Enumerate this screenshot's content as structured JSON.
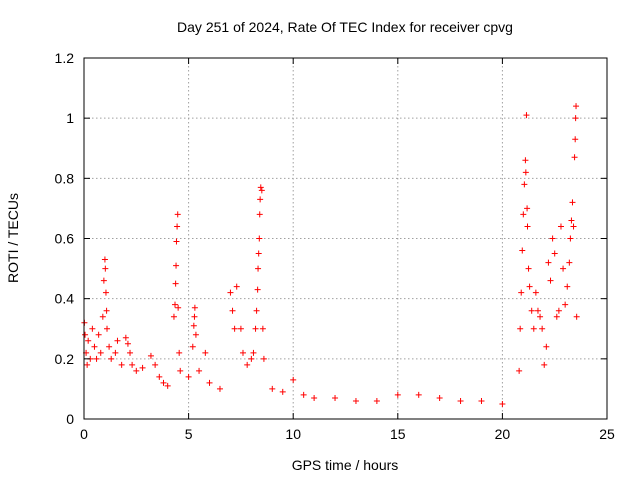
{
  "chart_data": {
    "type": "scatter",
    "title": "Day 251 of 2024, Rate Of TEC Index for receiver cpvg",
    "xlabel": "GPS time / hours",
    "ylabel": "ROTI / TECUs",
    "xlim": [
      0,
      25
    ],
    "ylim": [
      0,
      1.2
    ],
    "x_ticks": [
      0,
      5,
      10,
      15,
      20,
      25
    ],
    "x_tick_labels": [
      "0",
      "5",
      "10",
      "15",
      "20",
      "25"
    ],
    "y_ticks": [
      0,
      0.2,
      0.4,
      0.6,
      0.8,
      1,
      1.2
    ],
    "y_tick_labels": [
      "0",
      "0.2",
      "0.4",
      "0.6",
      "0.8",
      "1",
      "1.2"
    ],
    "grid": true,
    "marker": "+",
    "color": "#ff0000",
    "series": [
      {
        "name": "ROTI",
        "points": [
          [
            0.02,
            0.32
          ],
          [
            0.05,
            0.28
          ],
          [
            0.1,
            0.22
          ],
          [
            0.15,
            0.18
          ],
          [
            0.2,
            0.26
          ],
          [
            0.3,
            0.2
          ],
          [
            0.4,
            0.3
          ],
          [
            0.5,
            0.24
          ],
          [
            0.6,
            0.2
          ],
          [
            0.7,
            0.28
          ],
          [
            0.8,
            0.22
          ],
          [
            0.9,
            0.34
          ],
          [
            0.95,
            0.46
          ],
          [
            1.0,
            0.53
          ],
          [
            1.02,
            0.5
          ],
          [
            1.05,
            0.42
          ],
          [
            1.08,
            0.36
          ],
          [
            1.1,
            0.3
          ],
          [
            1.2,
            0.24
          ],
          [
            1.3,
            0.2
          ],
          [
            1.5,
            0.22
          ],
          [
            1.6,
            0.26
          ],
          [
            1.8,
            0.18
          ],
          [
            2.0,
            0.27
          ],
          [
            2.1,
            0.25
          ],
          [
            2.2,
            0.22
          ],
          [
            2.3,
            0.18
          ],
          [
            2.5,
            0.16
          ],
          [
            2.8,
            0.17
          ],
          [
            3.2,
            0.21
          ],
          [
            3.4,
            0.18
          ],
          [
            3.6,
            0.14
          ],
          [
            3.8,
            0.12
          ],
          [
            4.0,
            0.11
          ],
          [
            4.3,
            0.34
          ],
          [
            4.35,
            0.38
          ],
          [
            4.38,
            0.45
          ],
          [
            4.4,
            0.51
          ],
          [
            4.42,
            0.59
          ],
          [
            4.45,
            0.64
          ],
          [
            4.48,
            0.68
          ],
          [
            4.5,
            0.37
          ],
          [
            4.55,
            0.22
          ],
          [
            4.6,
            0.16
          ],
          [
            5.0,
            0.14
          ],
          [
            5.2,
            0.24
          ],
          [
            5.25,
            0.31
          ],
          [
            5.28,
            0.34
          ],
          [
            5.3,
            0.37
          ],
          [
            5.35,
            0.28
          ],
          [
            5.5,
            0.16
          ],
          [
            5.8,
            0.22
          ],
          [
            6.0,
            0.12
          ],
          [
            6.5,
            0.1
          ],
          [
            7.0,
            0.42
          ],
          [
            7.1,
            0.36
          ],
          [
            7.2,
            0.3
          ],
          [
            7.3,
            0.44
          ],
          [
            7.5,
            0.3
          ],
          [
            7.6,
            0.22
          ],
          [
            7.8,
            0.18
          ],
          [
            8.0,
            0.2
          ],
          [
            8.1,
            0.22
          ],
          [
            8.2,
            0.3
          ],
          [
            8.25,
            0.36
          ],
          [
            8.3,
            0.43
          ],
          [
            8.32,
            0.5
          ],
          [
            8.35,
            0.55
          ],
          [
            8.38,
            0.6
          ],
          [
            8.4,
            0.68
          ],
          [
            8.42,
            0.73
          ],
          [
            8.45,
            0.77
          ],
          [
            8.5,
            0.76
          ],
          [
            8.55,
            0.3
          ],
          [
            8.6,
            0.2
          ],
          [
            9.0,
            0.1
          ],
          [
            9.5,
            0.09
          ],
          [
            10.0,
            0.13
          ],
          [
            10.5,
            0.08
          ],
          [
            11.0,
            0.07
          ],
          [
            12.0,
            0.07
          ],
          [
            13.0,
            0.06
          ],
          [
            14.0,
            0.06
          ],
          [
            15.0,
            0.08
          ],
          [
            16.0,
            0.08
          ],
          [
            17.0,
            0.07
          ],
          [
            18.0,
            0.06
          ],
          [
            19.0,
            0.06
          ],
          [
            20.0,
            0.05
          ],
          [
            20.8,
            0.16
          ],
          [
            20.85,
            0.3
          ],
          [
            20.9,
            0.42
          ],
          [
            20.95,
            0.56
          ],
          [
            21.0,
            0.68
          ],
          [
            21.05,
            0.78
          ],
          [
            21.1,
            0.86
          ],
          [
            21.12,
            0.82
          ],
          [
            21.15,
            1.01
          ],
          [
            21.18,
            0.7
          ],
          [
            21.2,
            0.64
          ],
          [
            21.25,
            0.5
          ],
          [
            21.3,
            0.44
          ],
          [
            21.4,
            0.36
          ],
          [
            21.5,
            0.3
          ],
          [
            21.6,
            0.42
          ],
          [
            21.7,
            0.36
          ],
          [
            21.8,
            0.34
          ],
          [
            21.9,
            0.3
          ],
          [
            22.0,
            0.18
          ],
          [
            22.1,
            0.24
          ],
          [
            22.2,
            0.52
          ],
          [
            22.3,
            0.46
          ],
          [
            22.4,
            0.6
          ],
          [
            22.5,
            0.55
          ],
          [
            22.6,
            0.34
          ],
          [
            22.7,
            0.36
          ],
          [
            22.8,
            0.64
          ],
          [
            22.9,
            0.5
          ],
          [
            23.0,
            0.38
          ],
          [
            23.1,
            0.44
          ],
          [
            23.2,
            0.52
          ],
          [
            23.25,
            0.6
          ],
          [
            23.3,
            0.66
          ],
          [
            23.35,
            0.72
          ],
          [
            23.4,
            0.64
          ],
          [
            23.45,
            0.87
          ],
          [
            23.48,
            0.93
          ],
          [
            23.5,
            1.0
          ],
          [
            23.52,
            1.04
          ],
          [
            23.55,
            0.34
          ]
        ]
      }
    ]
  }
}
